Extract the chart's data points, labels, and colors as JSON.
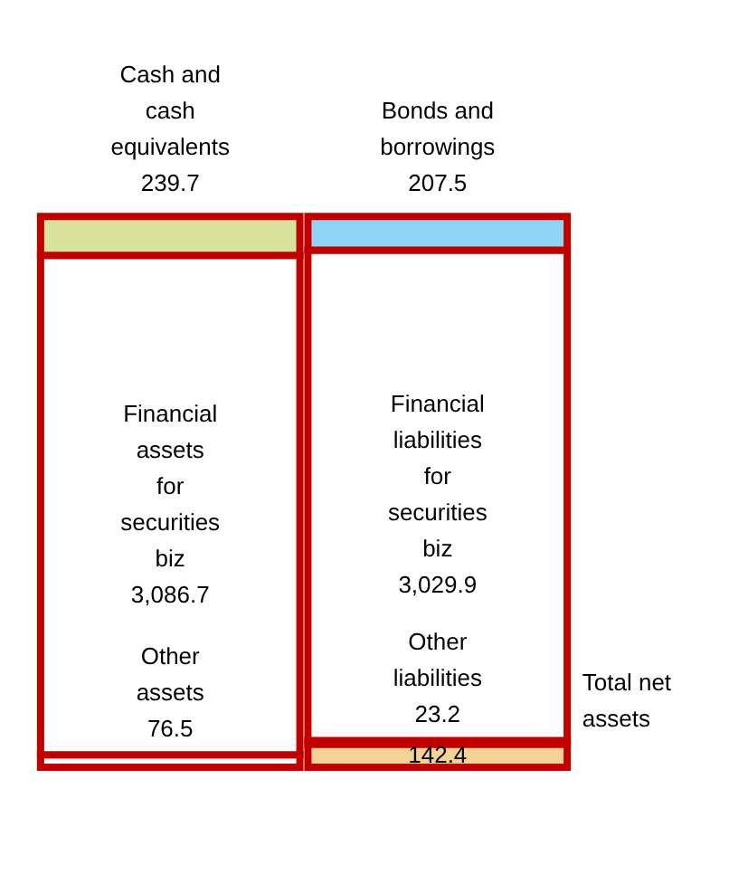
{
  "chart_data": {
    "type": "bar",
    "stacked": true,
    "categories": [
      null,
      null
    ],
    "tick_labels": false,
    "legend": false,
    "series": [
      {
        "name": "Other assets",
        "color": "#ffffff",
        "values": [
          76.5,
          null
        ],
        "value_labels": [
          "76.5",
          null
        ]
      },
      {
        "name": "Total net assets",
        "color": "#f4d295",
        "values": [
          null,
          142.4
        ],
        "value_labels": [
          null,
          "142.4"
        ]
      },
      {
        "name": "Other liabilities",
        "color": "#ffffff",
        "values": [
          null,
          23.2
        ],
        "value_labels": [
          null,
          "23.2"
        ]
      },
      {
        "name": "Financial assets for securities biz",
        "color": "#ffffff",
        "values": [
          3086.7,
          null
        ],
        "value_labels": [
          "3,086.7",
          null
        ]
      },
      {
        "name": "Financial liabilities for securities biz",
        "color": "#ffffff",
        "values": [
          null,
          3029.9
        ],
        "value_labels": [
          null,
          "3,029.9"
        ]
      },
      {
        "name": "Cash and cash equivalents",
        "color": "#d9e29b",
        "values": [
          239.7,
          null
        ],
        "value_labels": [
          "239.7",
          null
        ]
      },
      {
        "name": "Bonds and borrowings",
        "color": "#8fd3f5",
        "values": [
          null,
          207.5
        ],
        "value_labels": [
          null,
          "207.5"
        ]
      }
    ]
  }
}
